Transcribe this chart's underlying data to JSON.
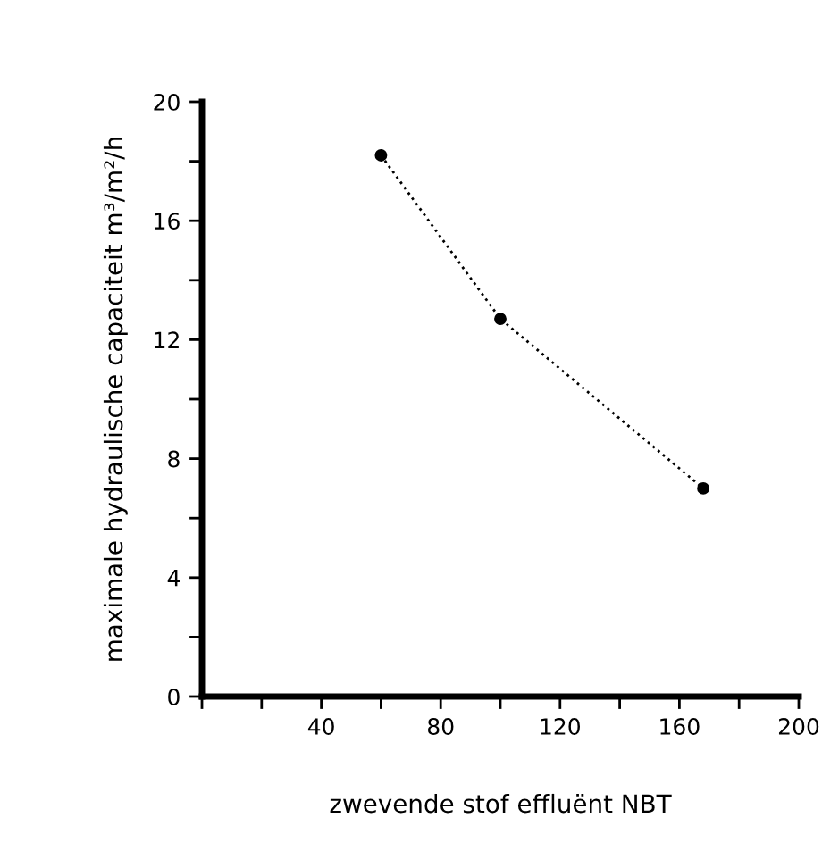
{
  "chart_data": {
    "type": "line",
    "xlabel": "zwevende stof effluënt NBT",
    "ylabel": "maximale hydraulische capaciteit m³/m²/h",
    "x": [
      60,
      100,
      168
    ],
    "series": [
      {
        "color": "#000000",
        "values": [
          18.2,
          12.7,
          7.0
        ]
      }
    ],
    "marker": "circle",
    "line_style": "dotted",
    "xlim": [
      0,
      200
    ],
    "ylim": [
      0,
      20
    ],
    "xticks": [
      {
        "value": 0,
        "label": null
      },
      {
        "value": 20,
        "label": null
      },
      40,
      {
        "value": 60,
        "label": null
      },
      80,
      {
        "value": 100,
        "label": null
      },
      120,
      {
        "value": 140,
        "label": null
      },
      160,
      {
        "value": 180,
        "label": null
      },
      200
    ],
    "yticks": [
      0,
      {
        "value": 2,
        "label": null
      },
      4,
      {
        "value": 6,
        "label": null
      },
      8,
      {
        "value": 10,
        "label": null
      },
      12,
      {
        "value": 14,
        "label": null
      },
      16,
      {
        "value": 18,
        "label": null
      },
      20
    ],
    "grid": false,
    "legend": false
  }
}
